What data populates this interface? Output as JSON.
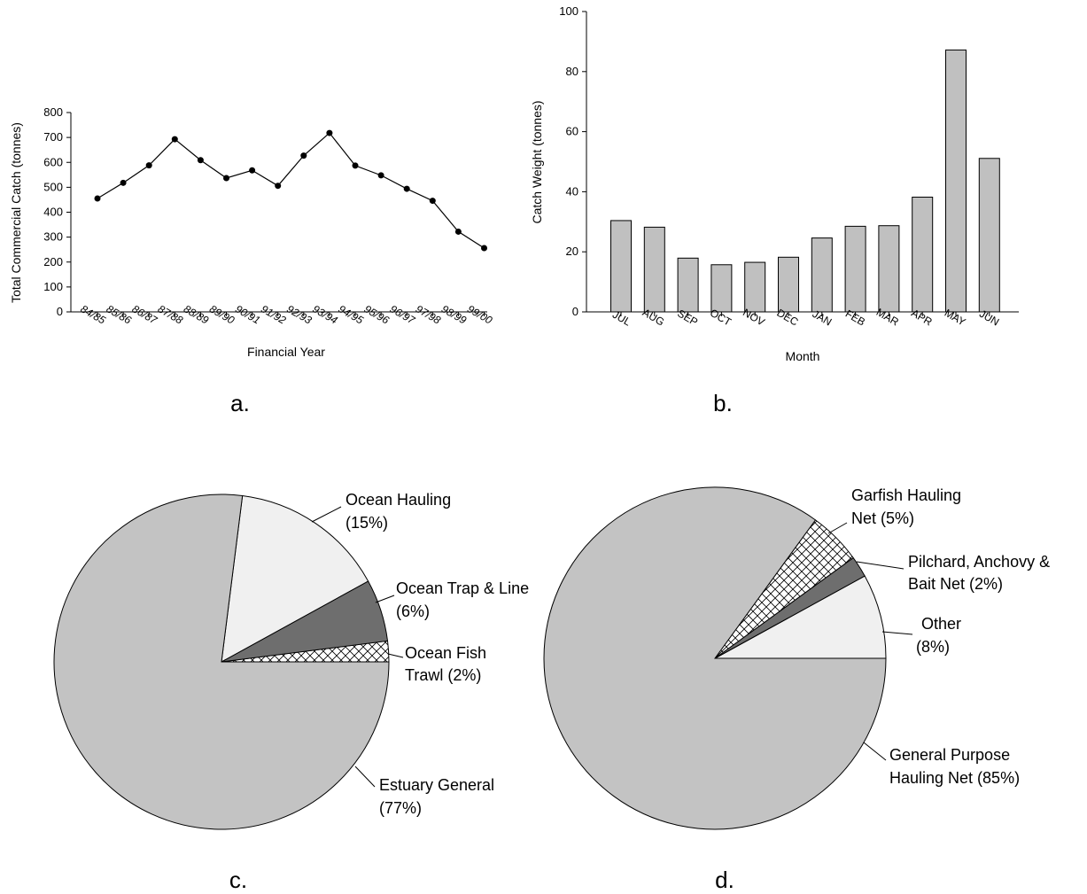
{
  "chart_data": [
    {
      "id": "a",
      "type": "line",
      "panel_label": "a.",
      "xlabel": "Financial Year",
      "ylabel": "Total Commercial Catch (tonnes)",
      "ylim": [
        0,
        800
      ],
      "yticks": [
        0,
        100,
        200,
        300,
        400,
        500,
        600,
        700,
        800
      ],
      "categories": [
        "84/85",
        "85/86",
        "86/87",
        "87/88",
        "88/89",
        "89/90",
        "90/91",
        "91/92",
        "92/93",
        "93/94",
        "94/95",
        "95/96",
        "96/97",
        "97/98",
        "98/99",
        "99/00"
      ],
      "values": [
        455,
        518,
        588,
        693,
        609,
        537,
        568,
        506,
        627,
        718,
        587,
        548,
        494,
        446,
        322,
        256
      ],
      "grid": false
    },
    {
      "id": "b",
      "type": "bar",
      "panel_label": "b.",
      "xlabel": "Month",
      "ylabel": "Catch Weight (tonnes)",
      "ylim": [
        0,
        100
      ],
      "yticks": [
        0,
        20,
        40,
        60,
        80,
        100
      ],
      "categories": [
        "JUL",
        "AUG",
        "SEP",
        "OCT",
        "NOV",
        "DEC",
        "JAN",
        "FEB",
        "MAR",
        "APR",
        "MAY",
        "JUN"
      ],
      "values": [
        30.4,
        28.2,
        17.9,
        15.7,
        16.5,
        18.2,
        24.6,
        28.5,
        28.7,
        38.2,
        87.2,
        51.1
      ],
      "colors": {
        "bar": "#c0c0c0"
      },
      "grid": false
    },
    {
      "id": "c",
      "type": "pie",
      "panel_label": "c.",
      "slices": [
        {
          "label": "Estuary General",
          "value": 77,
          "pct_label": "(77%)",
          "pattern": "grey"
        },
        {
          "label": "Ocean Hauling",
          "value": 15,
          "pct_label": "(15%)",
          "pattern": "light"
        },
        {
          "label": "Ocean Trap & Line",
          "value": 6,
          "pct_label": "(6%)",
          "pattern": "dark"
        },
        {
          "label": "Ocean Fish",
          "label2": "Trawl (2%)",
          "value": 2,
          "pattern": "crosshatch"
        }
      ],
      "colors": {
        "grey": "#c3c3c3",
        "light": "#f0f0f0",
        "dark": "#6e6e6e",
        "crosshatch": "#ffffff"
      }
    },
    {
      "id": "d",
      "type": "pie",
      "panel_label": "d.",
      "slices": [
        {
          "label": "General Purpose",
          "label2": "Hauling Net (85%)",
          "value": 85,
          "pattern": "grey"
        },
        {
          "label": "Garfish Hauling",
          "label2": "Net (5%)",
          "value": 5,
          "pattern": "crosshatch"
        },
        {
          "label": "Pilchard, Anchovy &",
          "label2": "Bait Net (2%)",
          "value": 2,
          "pattern": "dark"
        },
        {
          "label": "Other",
          "label2": "(8%)",
          "value": 8,
          "pattern": "light"
        }
      ],
      "colors": {
        "grey": "#c3c3c3",
        "light": "#f0f0f0",
        "dark": "#6e6e6e",
        "crosshatch": "#ffffff"
      }
    }
  ]
}
